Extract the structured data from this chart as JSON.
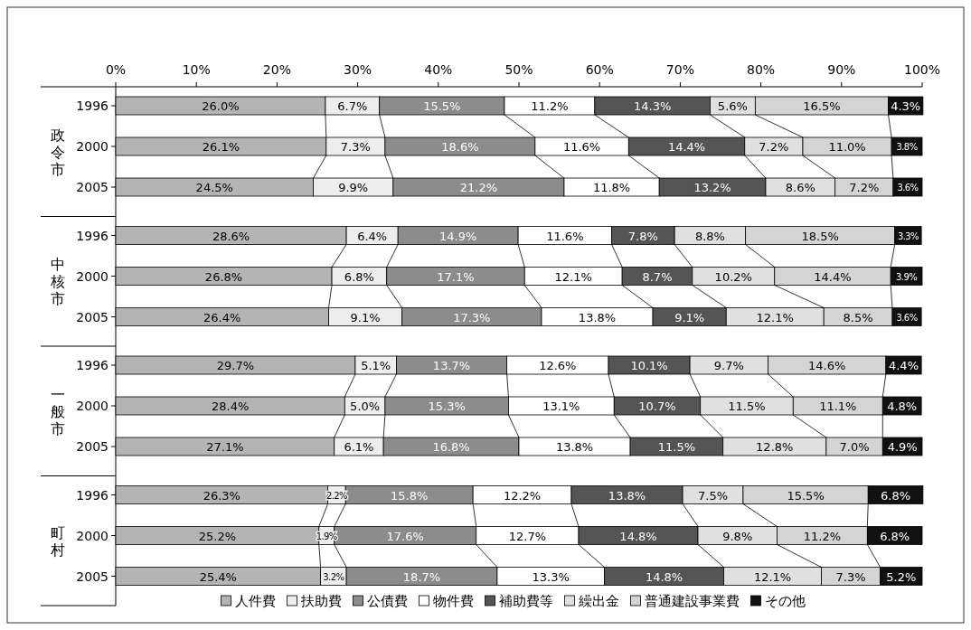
{
  "chart_data": [
    {
      "type": "bar",
      "orientation": "horizontal",
      "stacked": true,
      "ylabel": "政令市",
      "categories": [
        "1996",
        "2000",
        "2005"
      ],
      "xlim": [
        0,
        100
      ],
      "xticks": [
        {
          "value": 0,
          "label": "0%"
        },
        {
          "value": 10,
          "label": "10%"
        },
        {
          "value": 20,
          "label": "20%"
        },
        {
          "value": 30,
          "label": "30%"
        },
        {
          "value": 40,
          "label": "40%"
        },
        {
          "value": 50,
          "label": "50%"
        },
        {
          "value": 60,
          "label": "60%"
        },
        {
          "value": 70,
          "label": "70%"
        },
        {
          "value": 80,
          "label": "80%"
        },
        {
          "value": 90,
          "label": "90%"
        },
        {
          "value": 100,
          "label": "100%"
        }
      ],
      "series": [
        {
          "color": "#b4b4b4",
          "values": [
            26.0,
            26.1,
            24.5
          ],
          "value_labels": [
            "26.0%",
            "26.1%",
            "24.5%"
          ]
        },
        {
          "color": "#ededed",
          "values": [
            6.7,
            7.3,
            9.9
          ],
          "value_labels": [
            "6.7%",
            "7.3%",
            "9.9%"
          ]
        },
        {
          "color": "#8c8c8c",
          "values": [
            15.5,
            18.6,
            21.2
          ],
          "value_labels": [
            "15.5%",
            "18.6%",
            "21.2%"
          ]
        },
        {
          "color": "#ffffff",
          "values": [
            11.2,
            11.6,
            11.8
          ],
          "value_labels": [
            "11.2%",
            "11.6%",
            "11.8%"
          ]
        },
        {
          "color": "#555555",
          "values": [
            14.3,
            14.4,
            13.2
          ],
          "value_labels": [
            "14.3%",
            "14.4%",
            "13.2%"
          ]
        },
        {
          "color": "#e0e0e0",
          "values": [
            5.6,
            7.2,
            8.6
          ],
          "value_labels": [
            "5.6%",
            "7.2%",
            "8.6%"
          ]
        },
        {
          "color": "#d4d4d4",
          "values": [
            16.5,
            11.0,
            7.2
          ],
          "value_labels": [
            "16.5%",
            "11.0%",
            "7.2%"
          ]
        },
        {
          "color": "#111111",
          "values": [
            4.3,
            3.8,
            3.6
          ],
          "value_labels": [
            "4.3%",
            "3.8%",
            "3.6%"
          ]
        }
      ]
    },
    {
      "type": "bar",
      "orientation": "horizontal",
      "stacked": true,
      "ylabel": "中核市",
      "categories": [
        "1996",
        "2000",
        "2005"
      ],
      "xlim": [
        0,
        100
      ],
      "tick_labels": "y",
      "series": [
        {
          "color": "#b4b4b4",
          "values": [
            28.6,
            26.8,
            26.4
          ],
          "value_labels": [
            "28.6%",
            "26.8%",
            "26.4%"
          ]
        },
        {
          "color": "#ededed",
          "values": [
            6.4,
            6.8,
            9.1
          ],
          "value_labels": [
            "6.4%",
            "6.8%",
            "9.1%"
          ]
        },
        {
          "color": "#8c8c8c",
          "values": [
            14.9,
            17.1,
            17.3
          ],
          "value_labels": [
            "14.9%",
            "17.1%",
            "17.3%"
          ]
        },
        {
          "color": "#ffffff",
          "values": [
            11.6,
            12.1,
            13.8
          ],
          "value_labels": [
            "11.6%",
            "12.1%",
            "13.8%"
          ]
        },
        {
          "color": "#555555",
          "values": [
            7.8,
            8.7,
            9.1
          ],
          "value_labels": [
            "7.8%",
            "8.7%",
            "9.1%"
          ]
        },
        {
          "color": "#e0e0e0",
          "values": [
            8.8,
            10.2,
            12.1
          ],
          "value_labels": [
            "8.8%",
            "10.2%",
            "12.1%"
          ]
        },
        {
          "color": "#d4d4d4",
          "values": [
            18.5,
            14.4,
            8.5
          ],
          "value_labels": [
            "18.5%",
            "14.4%",
            "8.5%"
          ]
        },
        {
          "color": "#111111",
          "values": [
            3.3,
            3.9,
            3.6
          ],
          "value_labels": [
            "3.3%",
            "3.9%",
            "3.6%"
          ]
        }
      ]
    },
    {
      "type": "bar",
      "orientation": "horizontal",
      "stacked": true,
      "ylabel": "一般市",
      "categories": [
        "1996",
        "2000",
        "2005"
      ],
      "xlim": [
        0,
        100
      ],
      "tick_labels": "y",
      "series": [
        {
          "color": "#b4b4b4",
          "values": [
            29.7,
            28.4,
            27.1
          ],
          "value_labels": [
            "29.7%",
            "28.4%",
            "27.1%"
          ]
        },
        {
          "color": "#ededed",
          "values": [
            5.1,
            5.0,
            6.1
          ],
          "value_labels": [
            "5.1%",
            "5.0%",
            "6.1%"
          ]
        },
        {
          "color": "#8c8c8c",
          "values": [
            13.7,
            15.3,
            16.8
          ],
          "value_labels": [
            "13.7%",
            "15.3%",
            "16.8%"
          ]
        },
        {
          "color": "#ffffff",
          "values": [
            12.6,
            13.1,
            13.8
          ],
          "value_labels": [
            "12.6%",
            "13.1%",
            "13.8%"
          ]
        },
        {
          "color": "#555555",
          "values": [
            10.1,
            10.7,
            11.5
          ],
          "value_labels": [
            "10.1%",
            "10.7%",
            "11.5%"
          ]
        },
        {
          "color": "#e0e0e0",
          "values": [
            9.7,
            11.5,
            12.8
          ],
          "value_labels": [
            "9.7%",
            "11.5%",
            "12.8%"
          ]
        },
        {
          "color": "#d4d4d4",
          "values": [
            14.6,
            11.1,
            7.0
          ],
          "value_labels": [
            "14.6%",
            "11.1%",
            "7.0%"
          ]
        },
        {
          "color": "#111111",
          "values": [
            4.4,
            4.8,
            4.9
          ],
          "value_labels": [
            "4.4%",
            "4.8%",
            "4.9%"
          ]
        }
      ]
    },
    {
      "type": "bar",
      "orientation": "horizontal",
      "stacked": true,
      "ylabel": "町村",
      "categories": [
        "1996",
        "2000",
        "2005"
      ],
      "xlim": [
        0,
        100
      ],
      "tick_labels": "y",
      "legend": "bottom",
      "series": [
        {
          "name": "人件費",
          "color": "#b4b4b4",
          "values": [
            26.3,
            25.2,
            25.4
          ],
          "value_labels": [
            "26.3%",
            "25.2%",
            "25.4%"
          ]
        },
        {
          "name": "扶助費",
          "color": "#ededed",
          "values": [
            2.2,
            1.9,
            3.2
          ],
          "value_labels": [
            "2.2%",
            "1.9%",
            "3.2%"
          ]
        },
        {
          "name": "公債費",
          "color": "#8c8c8c",
          "values": [
            15.8,
            17.6,
            18.7
          ],
          "value_labels": [
            "15.8%",
            "17.6%",
            "18.7%"
          ]
        },
        {
          "name": "物件費",
          "color": "#ffffff",
          "values": [
            12.2,
            12.7,
            13.3
          ],
          "value_labels": [
            "12.2%",
            "12.7%",
            "13.3%"
          ]
        },
        {
          "name": "補助費等",
          "color": "#555555",
          "values": [
            13.8,
            14.8,
            14.8
          ],
          "value_labels": [
            "13.8%",
            "14.8%",
            "14.8%"
          ]
        },
        {
          "name": "繰出金",
          "color": "#e0e0e0",
          "values": [
            7.5,
            9.8,
            12.1
          ],
          "value_labels": [
            "7.5%",
            "9.8%",
            "12.1%"
          ]
        },
        {
          "name": "普通建設事業費",
          "color": "#d4d4d4",
          "values": [
            15.5,
            11.2,
            7.3
          ],
          "value_labels": [
            "15.5%",
            "11.2%",
            "7.3%"
          ]
        },
        {
          "name": "その他",
          "color": "#111111",
          "values": [
            6.8,
            6.8,
            5.2
          ],
          "value_labels": [
            "6.8%",
            "6.8%",
            "5.2%"
          ]
        }
      ]
    }
  ]
}
